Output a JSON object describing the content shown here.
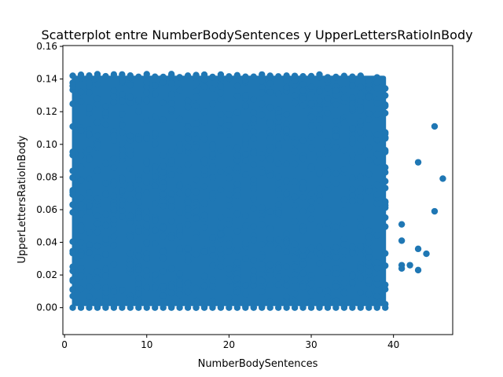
{
  "chart_data": {
    "type": "scatter",
    "title": "Scatterplot entre NumberBodySentences y UpperLettersRatioInBody",
    "xlabel": "NumberBodySentences",
    "ylabel": "UpperLettersRatioInBody",
    "xlim": [
      -0.2,
      47.2
    ],
    "ylim": [
      -0.0165,
      0.1605
    ],
    "xticks": [
      0,
      10,
      20,
      30,
      40
    ],
    "yticks": [
      0.0,
      0.02,
      0.04,
      0.06,
      0.08,
      0.1,
      0.12,
      0.14,
      0.16
    ],
    "grid": false,
    "legend": "none",
    "series_color": "#1f77b4",
    "dense_region": {
      "x_min": 1,
      "x_max": 39,
      "y_min": 0.0,
      "y_max": 0.143
    },
    "points": [
      {
        "x": 41,
        "y": 0.051
      },
      {
        "x": 41,
        "y": 0.041
      },
      {
        "x": 41,
        "y": 0.026
      },
      {
        "x": 41,
        "y": 0.024
      },
      {
        "x": 42,
        "y": 0.026
      },
      {
        "x": 43,
        "y": 0.036
      },
      {
        "x": 43,
        "y": 0.023
      },
      {
        "x": 43,
        "y": 0.089
      },
      {
        "x": 44,
        "y": 0.033
      },
      {
        "x": 45,
        "y": 0.059
      },
      {
        "x": 45,
        "y": 0.111
      },
      {
        "x": 46,
        "y": 0.079
      },
      {
        "x": 38,
        "y": 0.141
      },
      {
        "x": 38,
        "y": 0.138
      },
      {
        "x": 37,
        "y": 0.129
      },
      {
        "x": 36,
        "y": 0.142
      },
      {
        "x": 36,
        "y": 0.131
      },
      {
        "x": 35,
        "y": 0.136
      },
      {
        "x": 35,
        "y": 0.122
      },
      {
        "x": 34,
        "y": 0.113
      },
      {
        "x": 33,
        "y": 0.133
      },
      {
        "x": 33,
        "y": 0.141
      }
    ]
  }
}
